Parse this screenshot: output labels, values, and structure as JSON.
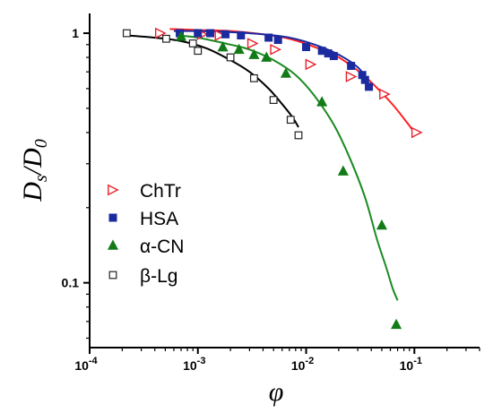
{
  "chart_data": {
    "type": "scatter",
    "xlabel": "φ",
    "ylabel_main": "D",
    "ylabel_sub": "s",
    "ylabel_slash": "/",
    "ylabel_main2": "D",
    "ylabel_sub2": "0",
    "x_scale": "log",
    "y_scale": "log",
    "xlim": [
      0.0001,
      0.4
    ],
    "ylim": [
      0.055,
      1.2
    ],
    "grid": false,
    "legend_position": "left-middle",
    "x_ticks": [
      {
        "value": 0.0001,
        "base": "10",
        "exp": "-4"
      },
      {
        "value": 0.001,
        "base": "10",
        "exp": "-3"
      },
      {
        "value": 0.01,
        "base": "10",
        "exp": "-2"
      },
      {
        "value": 0.1,
        "base": "10",
        "exp": "-1"
      }
    ],
    "y_ticks": [
      {
        "value": 1,
        "label": "1"
      },
      {
        "value": 0.1,
        "label": "0.1"
      }
    ],
    "series": [
      {
        "name": "ChTr",
        "marker": "triangle-right-open",
        "color": "#e8202a",
        "points": [
          [
            0.00045,
            1.0
          ],
          [
            0.0011,
            0.99
          ],
          [
            0.0016,
            0.98
          ],
          [
            0.0032,
            0.91
          ],
          [
            0.0052,
            0.86
          ],
          [
            0.011,
            0.75
          ],
          [
            0.026,
            0.67
          ],
          [
            0.053,
            0.57
          ],
          [
            0.105,
            0.4
          ]
        ],
        "fit": [
          [
            0.00055,
            1.04
          ],
          [
            0.001,
            1.03
          ],
          [
            0.002,
            1.02
          ],
          [
            0.004,
            0.99
          ],
          [
            0.007,
            0.95
          ],
          [
            0.012,
            0.88
          ],
          [
            0.02,
            0.8
          ],
          [
            0.035,
            0.67
          ],
          [
            0.06,
            0.53
          ],
          [
            0.085,
            0.44
          ],
          [
            0.1,
            0.4
          ]
        ]
      },
      {
        "name": "HSA",
        "marker": "square-filled",
        "color": "#1c2aa0",
        "points": [
          [
            0.00068,
            1.0
          ],
          [
            0.001,
            1.0
          ],
          [
            0.0013,
            1.0
          ],
          [
            0.0018,
            0.99
          ],
          [
            0.0025,
            0.98
          ],
          [
            0.0045,
            0.96
          ],
          [
            0.0055,
            0.94
          ],
          [
            0.01,
            0.88
          ],
          [
            0.014,
            0.85
          ],
          [
            0.016,
            0.83
          ],
          [
            0.018,
            0.81
          ],
          [
            0.026,
            0.74
          ],
          [
            0.033,
            0.68
          ],
          [
            0.035,
            0.65
          ],
          [
            0.038,
            0.61
          ]
        ],
        "fit": [
          [
            0.0006,
            1.02
          ],
          [
            0.001,
            1.02
          ],
          [
            0.002,
            1.01
          ],
          [
            0.004,
            0.99
          ],
          [
            0.007,
            0.96
          ],
          [
            0.012,
            0.9
          ],
          [
            0.02,
            0.82
          ],
          [
            0.03,
            0.73
          ],
          [
            0.038,
            0.64
          ]
        ]
      },
      {
        "name": "α-CN",
        "marker": "triangle-up-filled",
        "color": "#137a18",
        "points": [
          [
            0.0007,
            0.97
          ],
          [
            0.0017,
            0.88
          ],
          [
            0.0024,
            0.86
          ],
          [
            0.0033,
            0.82
          ],
          [
            0.0043,
            0.8
          ],
          [
            0.0065,
            0.69
          ],
          [
            0.014,
            0.53
          ],
          [
            0.022,
            0.28
          ],
          [
            0.05,
            0.17
          ],
          [
            0.068,
            0.068
          ]
        ],
        "fit": [
          [
            0.00065,
            0.98
          ],
          [
            0.001,
            0.96
          ],
          [
            0.002,
            0.9
          ],
          [
            0.003,
            0.86
          ],
          [
            0.005,
            0.78
          ],
          [
            0.008,
            0.68
          ],
          [
            0.012,
            0.56
          ],
          [
            0.018,
            0.43
          ],
          [
            0.025,
            0.32
          ],
          [
            0.035,
            0.22
          ],
          [
            0.045,
            0.15
          ],
          [
            0.055,
            0.115
          ],
          [
            0.063,
            0.095
          ],
          [
            0.07,
            0.085
          ]
        ]
      },
      {
        "name": "β-Lg",
        "marker": "square-open",
        "color": "#222222",
        "points": [
          [
            0.00022,
            1.0
          ],
          [
            0.00051,
            0.95
          ],
          [
            0.0009,
            0.91
          ],
          [
            0.001,
            0.85
          ],
          [
            0.002,
            0.8
          ],
          [
            0.0033,
            0.66
          ],
          [
            0.005,
            0.54
          ],
          [
            0.0072,
            0.45
          ],
          [
            0.0085,
            0.39
          ]
        ],
        "fit": [
          [
            0.00022,
            0.98
          ],
          [
            0.0004,
            0.96
          ],
          [
            0.0007,
            0.93
          ],
          [
            0.0012,
            0.87
          ],
          [
            0.002,
            0.78
          ],
          [
            0.003,
            0.7
          ],
          [
            0.0045,
            0.6
          ],
          [
            0.006,
            0.52
          ],
          [
            0.0075,
            0.46
          ],
          [
            0.0085,
            0.42
          ]
        ]
      }
    ]
  }
}
